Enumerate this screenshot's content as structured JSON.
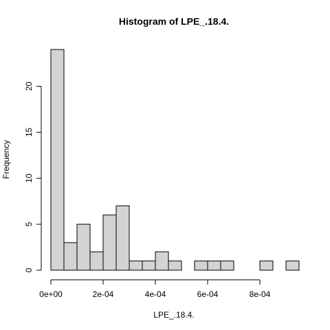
{
  "chart_data": {
    "type": "bar",
    "title": "Histogram of LPE_.18.4.",
    "xlabel": "LPE_.18.4.",
    "ylabel": "Frequency",
    "bin_width": 5e-05,
    "bins": [
      {
        "start": 0.0,
        "end": 5e-05,
        "count": 24
      },
      {
        "start": 5e-05,
        "end": 0.0001,
        "count": 3
      },
      {
        "start": 0.0001,
        "end": 0.00015,
        "count": 5
      },
      {
        "start": 0.00015,
        "end": 0.0002,
        "count": 2
      },
      {
        "start": 0.0002,
        "end": 0.00025,
        "count": 6
      },
      {
        "start": 0.00025,
        "end": 0.0003,
        "count": 7
      },
      {
        "start": 0.0003,
        "end": 0.00035,
        "count": 1
      },
      {
        "start": 0.00035,
        "end": 0.0004,
        "count": 1
      },
      {
        "start": 0.0004,
        "end": 0.00045,
        "count": 2
      },
      {
        "start": 0.00045,
        "end": 0.0005,
        "count": 1
      },
      {
        "start": 0.0005,
        "end": 0.00055,
        "count": 0
      },
      {
        "start": 0.00055,
        "end": 0.0006,
        "count": 1
      },
      {
        "start": 0.0006,
        "end": 0.00065,
        "count": 1
      },
      {
        "start": 0.00065,
        "end": 0.0007,
        "count": 1
      },
      {
        "start": 0.0007,
        "end": 0.00075,
        "count": 0
      },
      {
        "start": 0.00075,
        "end": 0.0008,
        "count": 0
      },
      {
        "start": 0.0008,
        "end": 0.00085,
        "count": 1
      },
      {
        "start": 0.00085,
        "end": 0.0009,
        "count": 0
      },
      {
        "start": 0.0009,
        "end": 0.00095,
        "count": 1
      }
    ],
    "xlim": [
      0,
      0.00095
    ],
    "ylim": [
      0,
      24
    ],
    "x_ticks": [
      {
        "value": 0.0,
        "label": "0e+00"
      },
      {
        "value": 0.0002,
        "label": "2e-04"
      },
      {
        "value": 0.0004,
        "label": "4e-04"
      },
      {
        "value": 0.0006,
        "label": "6e-04"
      },
      {
        "value": 0.0008,
        "label": "8e-04"
      }
    ],
    "y_ticks": [
      {
        "value": 0,
        "label": "0"
      },
      {
        "value": 5,
        "label": "5"
      },
      {
        "value": 10,
        "label": "10"
      },
      {
        "value": 15,
        "label": "15"
      },
      {
        "value": 20,
        "label": "20"
      }
    ],
    "bar_fill": "#d3d3d3",
    "bar_stroke": "#000000",
    "grid": false
  }
}
